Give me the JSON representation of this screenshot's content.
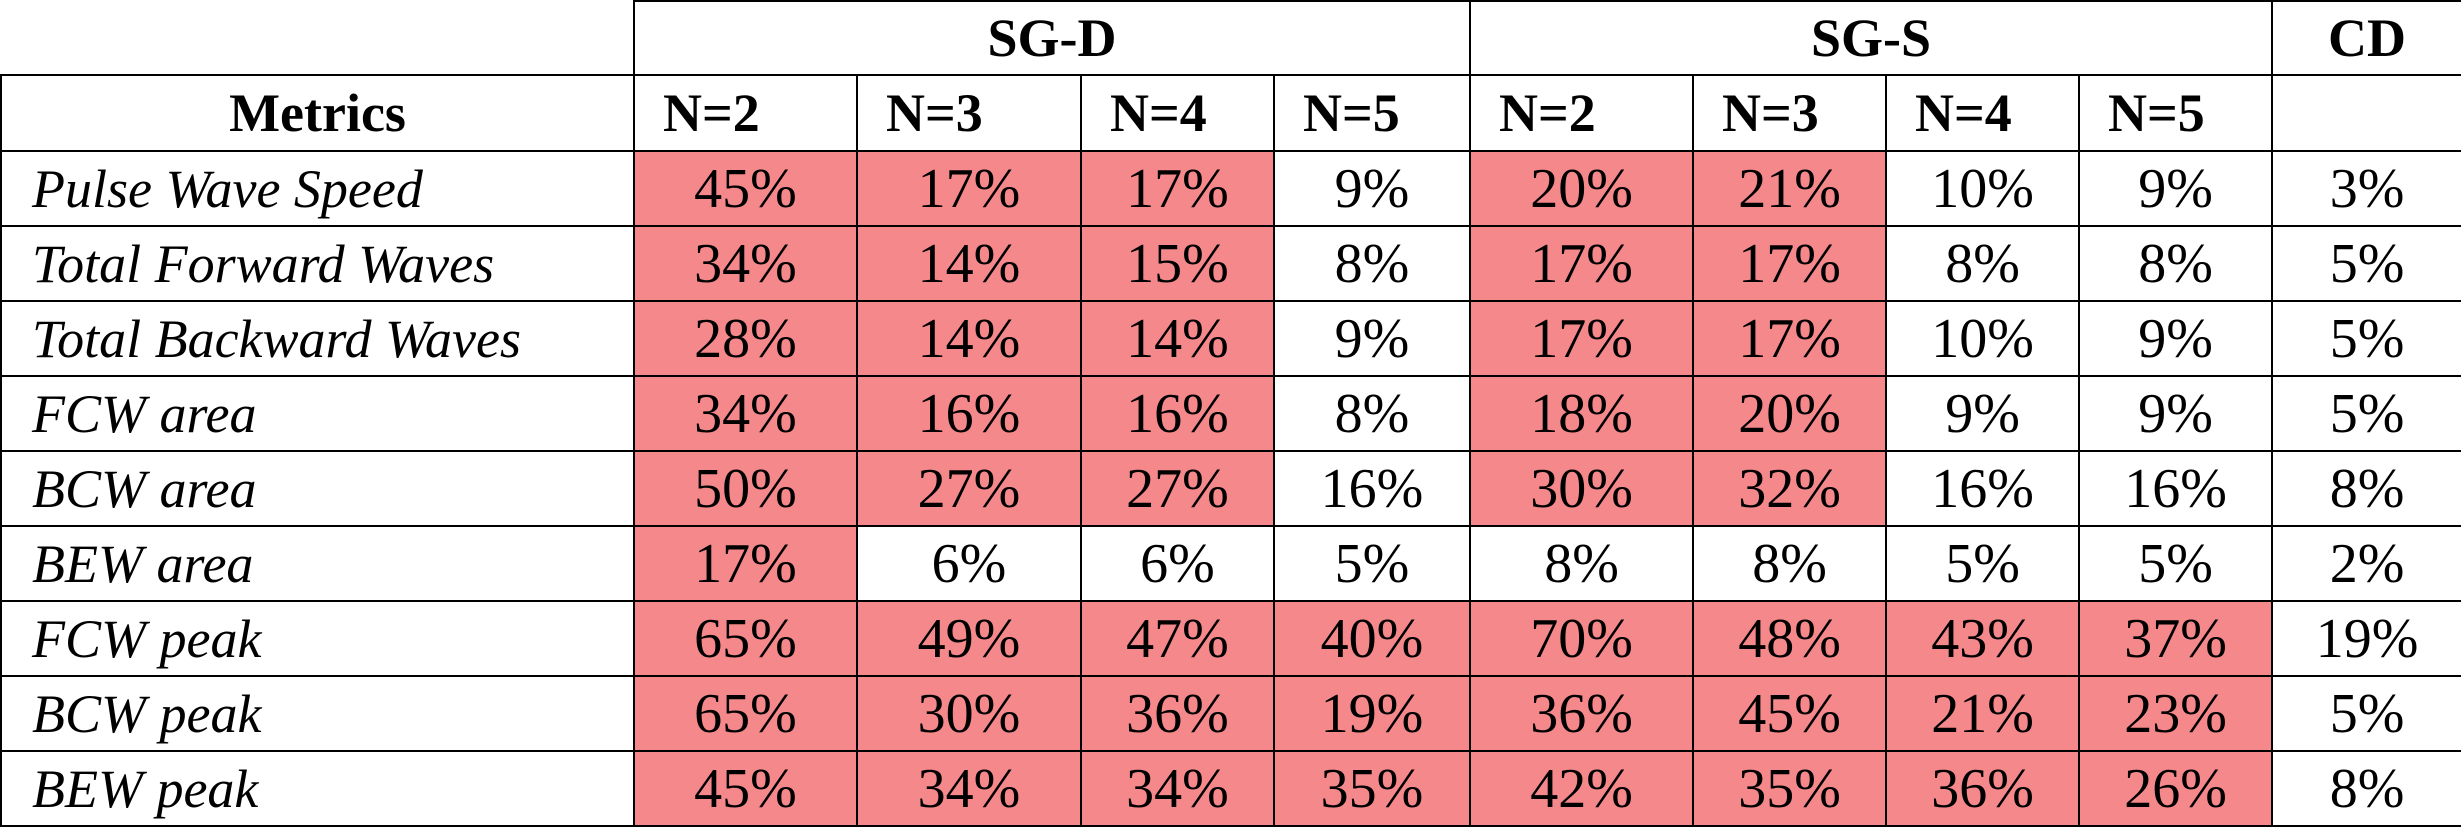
{
  "header": {
    "metrics_label": "Metrics",
    "groups": [
      {
        "label": "SG-D",
        "span": 4
      },
      {
        "label": "SG-S",
        "span": 4
      },
      {
        "label": "CD",
        "span": 1
      }
    ],
    "sub_columns": [
      "N=2",
      "N=3",
      "N=4",
      "N=5",
      "N=2",
      "N=3",
      "N=4",
      "N=5",
      ""
    ]
  },
  "highlight_color": "#f4888a",
  "rows": [
    {
      "metric": "Pulse Wave Speed",
      "values": [
        "45%",
        "17%",
        "17%",
        "9%",
        "20%",
        "21%",
        "10%",
        "9%",
        "3%"
      ],
      "highlighted": [
        true,
        true,
        true,
        false,
        true,
        true,
        false,
        false,
        false
      ]
    },
    {
      "metric": "Total Forward Waves",
      "values": [
        "34%",
        "14%",
        "15%",
        "8%",
        "17%",
        "17%",
        "8%",
        "8%",
        "5%"
      ],
      "highlighted": [
        true,
        true,
        true,
        false,
        true,
        true,
        false,
        false,
        false
      ]
    },
    {
      "metric": "Total Backward Waves",
      "values": [
        "28%",
        "14%",
        "14%",
        "9%",
        "17%",
        "17%",
        "10%",
        "9%",
        "5%"
      ],
      "highlighted": [
        true,
        true,
        true,
        false,
        true,
        true,
        false,
        false,
        false
      ]
    },
    {
      "metric": "FCW area",
      "values": [
        "34%",
        "16%",
        "16%",
        "8%",
        "18%",
        "20%",
        "9%",
        "9%",
        "5%"
      ],
      "highlighted": [
        true,
        true,
        true,
        false,
        true,
        true,
        false,
        false,
        false
      ]
    },
    {
      "metric": "BCW area",
      "values": [
        "50%",
        "27%",
        "27%",
        "16%",
        "30%",
        "32%",
        "16%",
        "16%",
        "8%"
      ],
      "highlighted": [
        true,
        true,
        true,
        false,
        true,
        true,
        false,
        false,
        false
      ]
    },
    {
      "metric": "BEW area",
      "values": [
        "17%",
        "6%",
        "6%",
        "5%",
        "8%",
        "8%",
        "5%",
        "5%",
        "2%"
      ],
      "highlighted": [
        true,
        false,
        false,
        false,
        false,
        false,
        false,
        false,
        false
      ]
    },
    {
      "metric": "FCW peak",
      "values": [
        "65%",
        "49%",
        "47%",
        "40%",
        "70%",
        "48%",
        "43%",
        "37%",
        "19%"
      ],
      "highlighted": [
        true,
        true,
        true,
        true,
        true,
        true,
        true,
        true,
        false
      ]
    },
    {
      "metric": "BCW peak",
      "values": [
        "65%",
        "30%",
        "36%",
        "19%",
        "36%",
        "45%",
        "21%",
        "23%",
        "5%"
      ],
      "highlighted": [
        true,
        true,
        true,
        true,
        true,
        true,
        true,
        true,
        false
      ]
    },
    {
      "metric": "BEW peak",
      "values": [
        "45%",
        "34%",
        "34%",
        "35%",
        "42%",
        "35%",
        "36%",
        "26%",
        "8%"
      ],
      "highlighted": [
        true,
        true,
        true,
        true,
        true,
        true,
        true,
        true,
        false
      ]
    }
  ]
}
